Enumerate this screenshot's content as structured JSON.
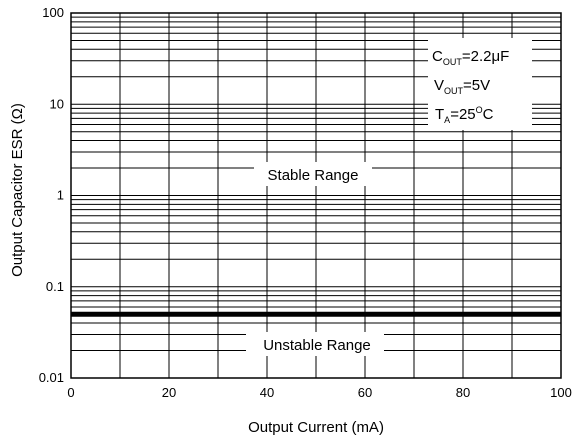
{
  "chart_data": {
    "type": "line",
    "xlabel": "Output Current (mA)",
    "ylabel": "Output Capacitor ESR (Ω)",
    "xlim": [
      0,
      100
    ],
    "ylim": [
      0.01,
      100
    ],
    "yscale": "log",
    "x_ticks": [
      0,
      20,
      40,
      60,
      80,
      100
    ],
    "x_tick_labels": [
      "0",
      "20",
      "40",
      "60",
      "80",
      "100"
    ],
    "y_ticks": [
      0.01,
      0.1,
      1,
      10,
      100
    ],
    "y_tick_labels": [
      "0.01",
      "0.1",
      "1",
      "10",
      "100"
    ],
    "grid": true,
    "series": [
      {
        "x": [
          0,
          100
        ],
        "y": [
          0.05,
          0.05
        ]
      }
    ],
    "annotations": {
      "stable": "Stable Range",
      "unstable": "Unstable Range"
    },
    "conditions": {
      "cout_sym": "C",
      "cout_sub": "OUT",
      "cout_val": "=2.2μF",
      "vout_sym": "V",
      "vout_sub": "OUT",
      "vout_val": "=5V",
      "ta_sym": "T",
      "ta_sub": "A",
      "ta_val_a": "=25",
      "ta_sup": "O",
      "ta_val_b": "C"
    }
  }
}
